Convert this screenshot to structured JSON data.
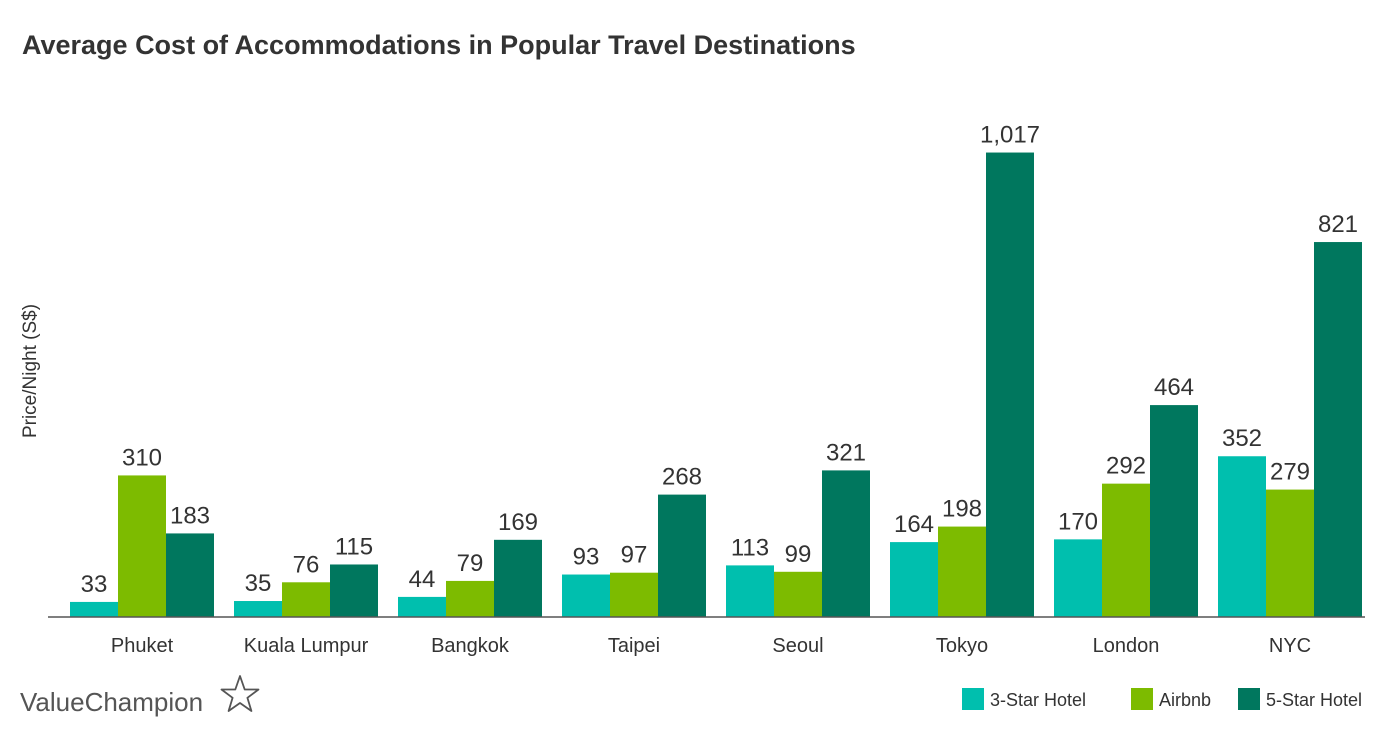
{
  "chart_data": {
    "type": "bar",
    "title": "Average Cost of Accommodations in Popular Travel Destinations",
    "xlabel": "",
    "ylabel": "Price/Night (S$)",
    "categories": [
      "Phuket",
      "Kuala Lumpur",
      "Bangkok",
      "Taipei",
      "Seoul",
      "Tokyo",
      "London",
      "NYC"
    ],
    "series": [
      {
        "name": "3-Star Hotel",
        "color": "#00bfae",
        "values": [
          33,
          35,
          44,
          93,
          113,
          164,
          170,
          352
        ]
      },
      {
        "name": "Airbnb",
        "color": "#7dbb00",
        "values": [
          310,
          76,
          79,
          97,
          99,
          198,
          292,
          279
        ]
      },
      {
        "name": "5-Star Hotel",
        "color": "#00775e",
        "values": [
          183,
          115,
          169,
          268,
          321,
          1017,
          464,
          821
        ]
      }
    ],
    "ylim": [
      0,
      1050
    ],
    "grid": false,
    "legend_position": "bottom-right",
    "data_labels": true
  },
  "branding": {
    "logo_text": "ValueChampion",
    "logo_icon": "star-outline-icon"
  }
}
